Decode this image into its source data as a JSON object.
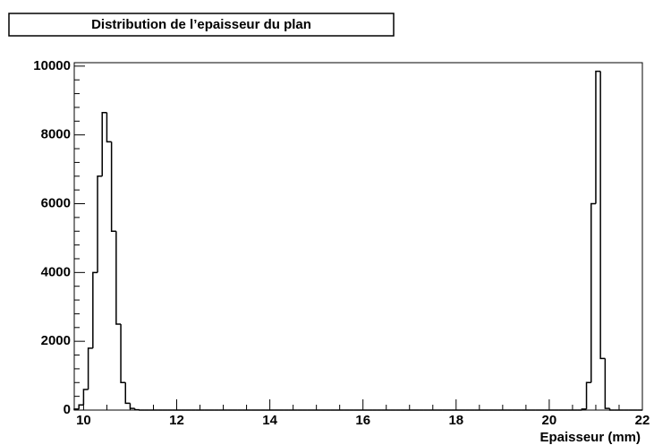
{
  "chart_data": {
    "type": "histogram",
    "title": "Distribution de l’epaisseur du plan",
    "xlabel": "Epaisseur (mm)",
    "bins": [
      9.8,
      9.9,
      10.0,
      10.1,
      10.2,
      10.3,
      10.4,
      10.5,
      10.6,
      10.7,
      10.8,
      10.9,
      11.0,
      11.1,
      11.2,
      11.3,
      11.4,
      11.5,
      11.6,
      11.7,
      11.8,
      11.9,
      12.0,
      12.1,
      12.2,
      12.3,
      12.4,
      12.5,
      12.6,
      12.7,
      12.8,
      12.9,
      13.0,
      13.1,
      13.2,
      13.3,
      13.4,
      13.5,
      13.6,
      13.7,
      13.8,
      13.9,
      14.0,
      14.1,
      14.2,
      14.3,
      14.4,
      14.5,
      14.6,
      14.7,
      14.8,
      14.9,
      15.0,
      15.1,
      15.2,
      15.3,
      15.4,
      15.5,
      15.6,
      15.7,
      15.8,
      15.9,
      16.0,
      16.1,
      16.2,
      16.3,
      16.4,
      16.5,
      16.6,
      16.7,
      16.8,
      16.9,
      17.0,
      17.1,
      17.2,
      17.3,
      17.4,
      17.5,
      17.6,
      17.7,
      17.8,
      17.9,
      18.0,
      18.1,
      18.2,
      18.3,
      18.4,
      18.5,
      18.6,
      18.7,
      18.8,
      18.9,
      19.0,
      19.1,
      19.2,
      19.3,
      19.4,
      19.5,
      19.6,
      19.7,
      19.8,
      19.9,
      20.0,
      20.1,
      20.2,
      20.3,
      20.4,
      20.5,
      20.6,
      20.7,
      20.8,
      20.9,
      21.0,
      21.1,
      21.2,
      21.3,
      21.4,
      21.5,
      21.6,
      21.7,
      21.8,
      21.9,
      22.0
    ],
    "values": [
      30,
      150,
      600,
      1800,
      4000,
      6800,
      8650,
      7800,
      5200,
      2500,
      800,
      200,
      50,
      10,
      0,
      0,
      0,
      0,
      0,
      0,
      0,
      0,
      0,
      0,
      0,
      0,
      0,
      0,
      0,
      0,
      0,
      0,
      0,
      0,
      0,
      0,
      0,
      0,
      0,
      0,
      0,
      0,
      0,
      0,
      0,
      0,
      0,
      0,
      0,
      0,
      0,
      0,
      0,
      0,
      0,
      0,
      0,
      0,
      0,
      0,
      0,
      0,
      0,
      0,
      0,
      0,
      0,
      0,
      0,
      0,
      0,
      0,
      0,
      0,
      0,
      0,
      0,
      0,
      0,
      0,
      0,
      0,
      0,
      0,
      0,
      0,
      0,
      0,
      0,
      0,
      0,
      0,
      0,
      0,
      0,
      0,
      0,
      0,
      0,
      0,
      0,
      0,
      0,
      0,
      0,
      0,
      0,
      0,
      0,
      30,
      800,
      6000,
      9850,
      1500,
      50,
      0,
      0,
      0,
      0,
      0,
      0,
      0
    ],
    "color": "#000000",
    "xlim": [
      9.8,
      22.0
    ],
    "xticks": [
      10,
      12,
      14,
      16,
      18,
      20,
      22
    ],
    "ylim": [
      0,
      10100
    ],
    "yticks": [
      0,
      2000,
      4000,
      6000,
      8000,
      10000
    ]
  }
}
